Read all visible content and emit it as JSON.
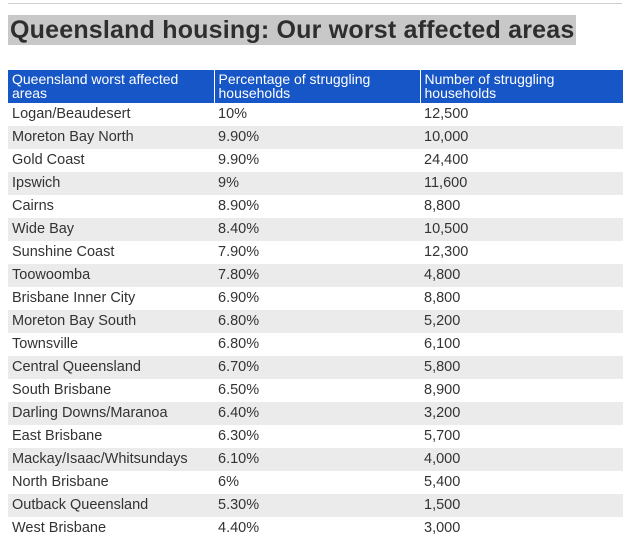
{
  "title": "Queensland housing: Our worst affected areas",
  "table": {
    "headers": [
      "Queensland worst affected areas",
      "Percentage of struggling households",
      "Number of struggling households"
    ],
    "rows": [
      [
        "Logan/Beaudesert",
        "10%",
        "12,500"
      ],
      [
        "Moreton Bay North",
        "9.90%",
        "10,000"
      ],
      [
        "Gold Coast",
        "9.90%",
        "24,400"
      ],
      [
        "Ipswich",
        "9%",
        "11,600"
      ],
      [
        "Cairns",
        "8.90%",
        "8,800"
      ],
      [
        "Wide Bay",
        "8.40%",
        "10,500"
      ],
      [
        "Sunshine Coast",
        "7.90%",
        "12,300"
      ],
      [
        "Toowoomba",
        "7.80%",
        "4,800"
      ],
      [
        "Brisbane Inner City",
        "6.90%",
        "8,800"
      ],
      [
        "Moreton Bay South",
        "6.80%",
        "5,200"
      ],
      [
        "Townsville",
        "6.80%",
        "6,100"
      ],
      [
        "Central Queensland",
        "6.70%",
        "5,800"
      ],
      [
        "South Brisbane",
        "6.50%",
        "8,900"
      ],
      [
        "Darling Downs/Maranoa",
        "6.40%",
        "3,200"
      ],
      [
        "East Brisbane",
        "6.30%",
        "5,700"
      ],
      [
        "Mackay/Isaac/Whitsundays",
        "6.10%",
        "4,000"
      ],
      [
        "North Brisbane",
        "6%",
        "5,400"
      ],
      [
        "Outback Queensland",
        "5.30%",
        "1,500"
      ],
      [
        "West Brisbane",
        "4.40%",
        "3,000"
      ]
    ]
  },
  "colors": {
    "header_bg": "#1756c6",
    "stripe_bg": "#ebebeb",
    "title_bg": "#c8c8c8"
  }
}
